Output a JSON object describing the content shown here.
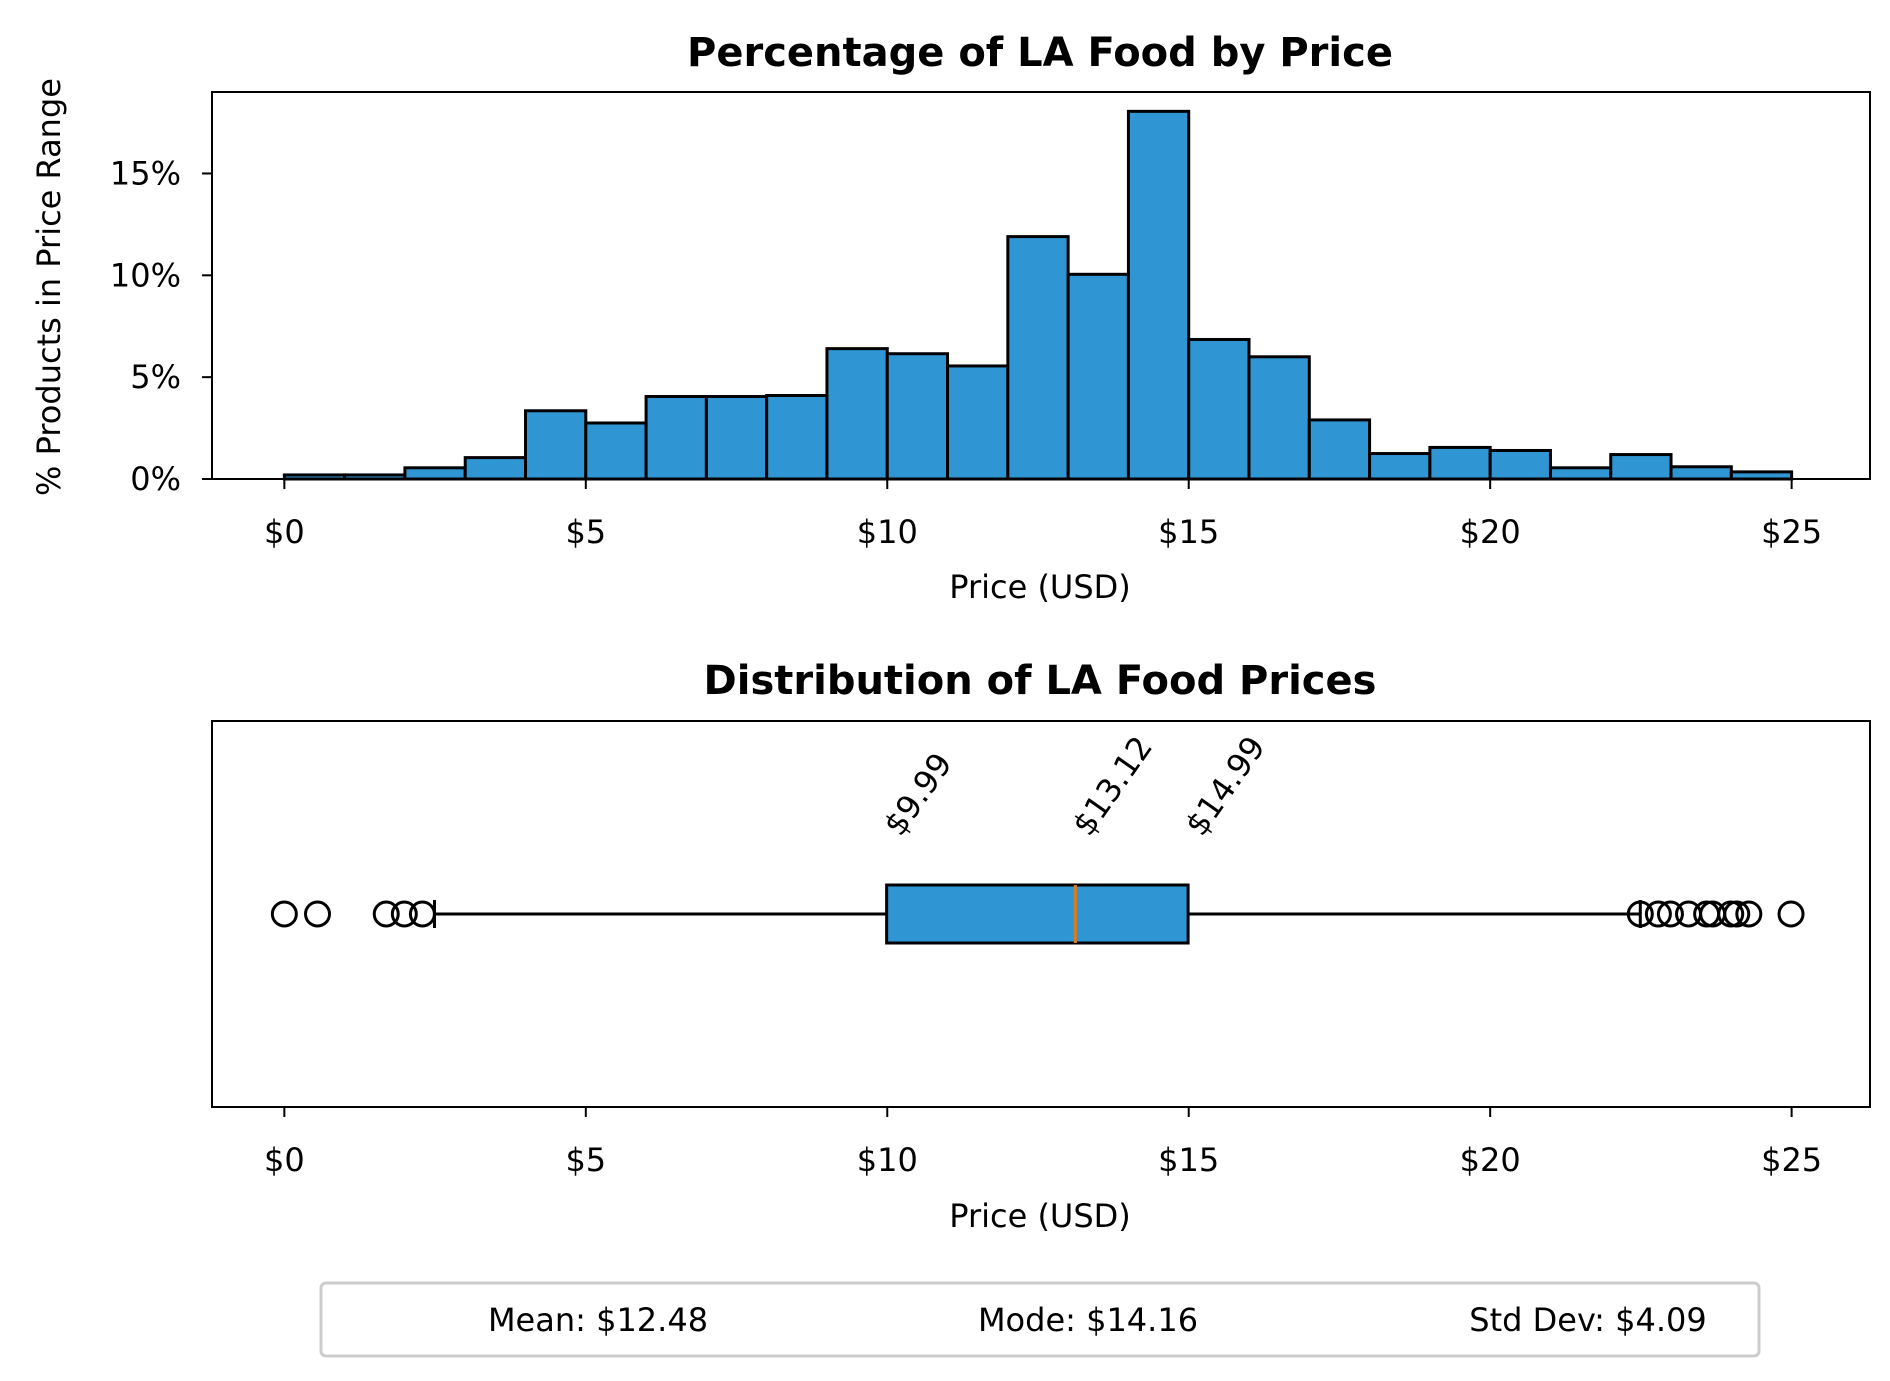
{
  "chart_data": [
    {
      "type": "bar",
      "title": "Percentage of LA Food by Price",
      "xlabel": "Price (USD)",
      "ylabel": "% Products in Price Range",
      "xlim": [
        -1.2,
        26.3
      ],
      "ylim": [
        0,
        19
      ],
      "xticks": [
        0,
        5,
        10,
        15,
        20,
        25
      ],
      "xtick_labels": [
        "$0",
        "$5",
        "$10",
        "$15",
        "$20",
        "$25"
      ],
      "yticks": [
        0,
        5,
        10,
        15
      ],
      "ytick_labels": [
        "0%",
        "5%",
        "10%",
        "15%"
      ],
      "color": "#3096d3",
      "bin_edges": [
        0,
        1,
        2,
        3,
        4,
        5,
        6,
        7,
        8,
        9,
        10,
        11,
        12,
        13,
        14,
        15,
        16,
        17,
        18,
        19,
        20,
        21,
        22,
        23,
        24,
        25
      ],
      "values": [
        0.2,
        0.2,
        0.55,
        1.05,
        3.35,
        2.75,
        4.05,
        4.05,
        4.1,
        6.4,
        6.15,
        5.55,
        11.9,
        10.05,
        18.05,
        6.85,
        6.0,
        2.9,
        1.25,
        1.55,
        1.4,
        0.55,
        1.2,
        0.6,
        0.35
      ],
      "grid": false
    },
    {
      "type": "box",
      "title": "Distribution of LA Food Prices",
      "xlabel": "Price (USD)",
      "xlim": [
        -1.2,
        26.3
      ],
      "xticks": [
        0,
        5,
        10,
        15,
        20,
        25
      ],
      "xtick_labels": [
        "$0",
        "$5",
        "$10",
        "$15",
        "$20",
        "$25"
      ],
      "q1": 9.99,
      "median": 13.12,
      "q3": 14.99,
      "whisker_low": 2.49,
      "whisker_high": 22.49,
      "outliers": [
        0.0,
        0.55,
        1.69,
        1.99,
        2.29,
        22.49,
        22.79,
        22.99,
        23.29,
        23.59,
        23.69,
        23.99,
        24.09,
        24.29,
        24.99
      ],
      "box_color": "#3096d3",
      "median_color": "#e07b19",
      "annotations": [
        "$9.99",
        "$13.12",
        "$14.99"
      ],
      "grid": false
    }
  ],
  "stats": {
    "mean": "Mean: $12.48",
    "mode": "Mode: $14.16",
    "std": "Std Dev: $4.09"
  }
}
